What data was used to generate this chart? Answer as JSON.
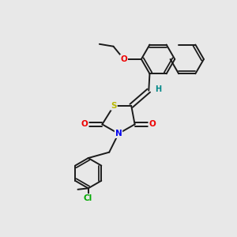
{
  "bg_color": "#e8e8e8",
  "bond_color": "#1a1a1a",
  "atom_colors": {
    "S": "#b8b800",
    "N": "#0000ee",
    "O": "#ee0000",
    "Cl": "#00aa00",
    "H": "#008888",
    "C": "#1a1a1a"
  },
  "font_size": 7.5,
  "linewidth": 1.4,
  "figsize": [
    3.0,
    3.0
  ],
  "dpi": 100
}
